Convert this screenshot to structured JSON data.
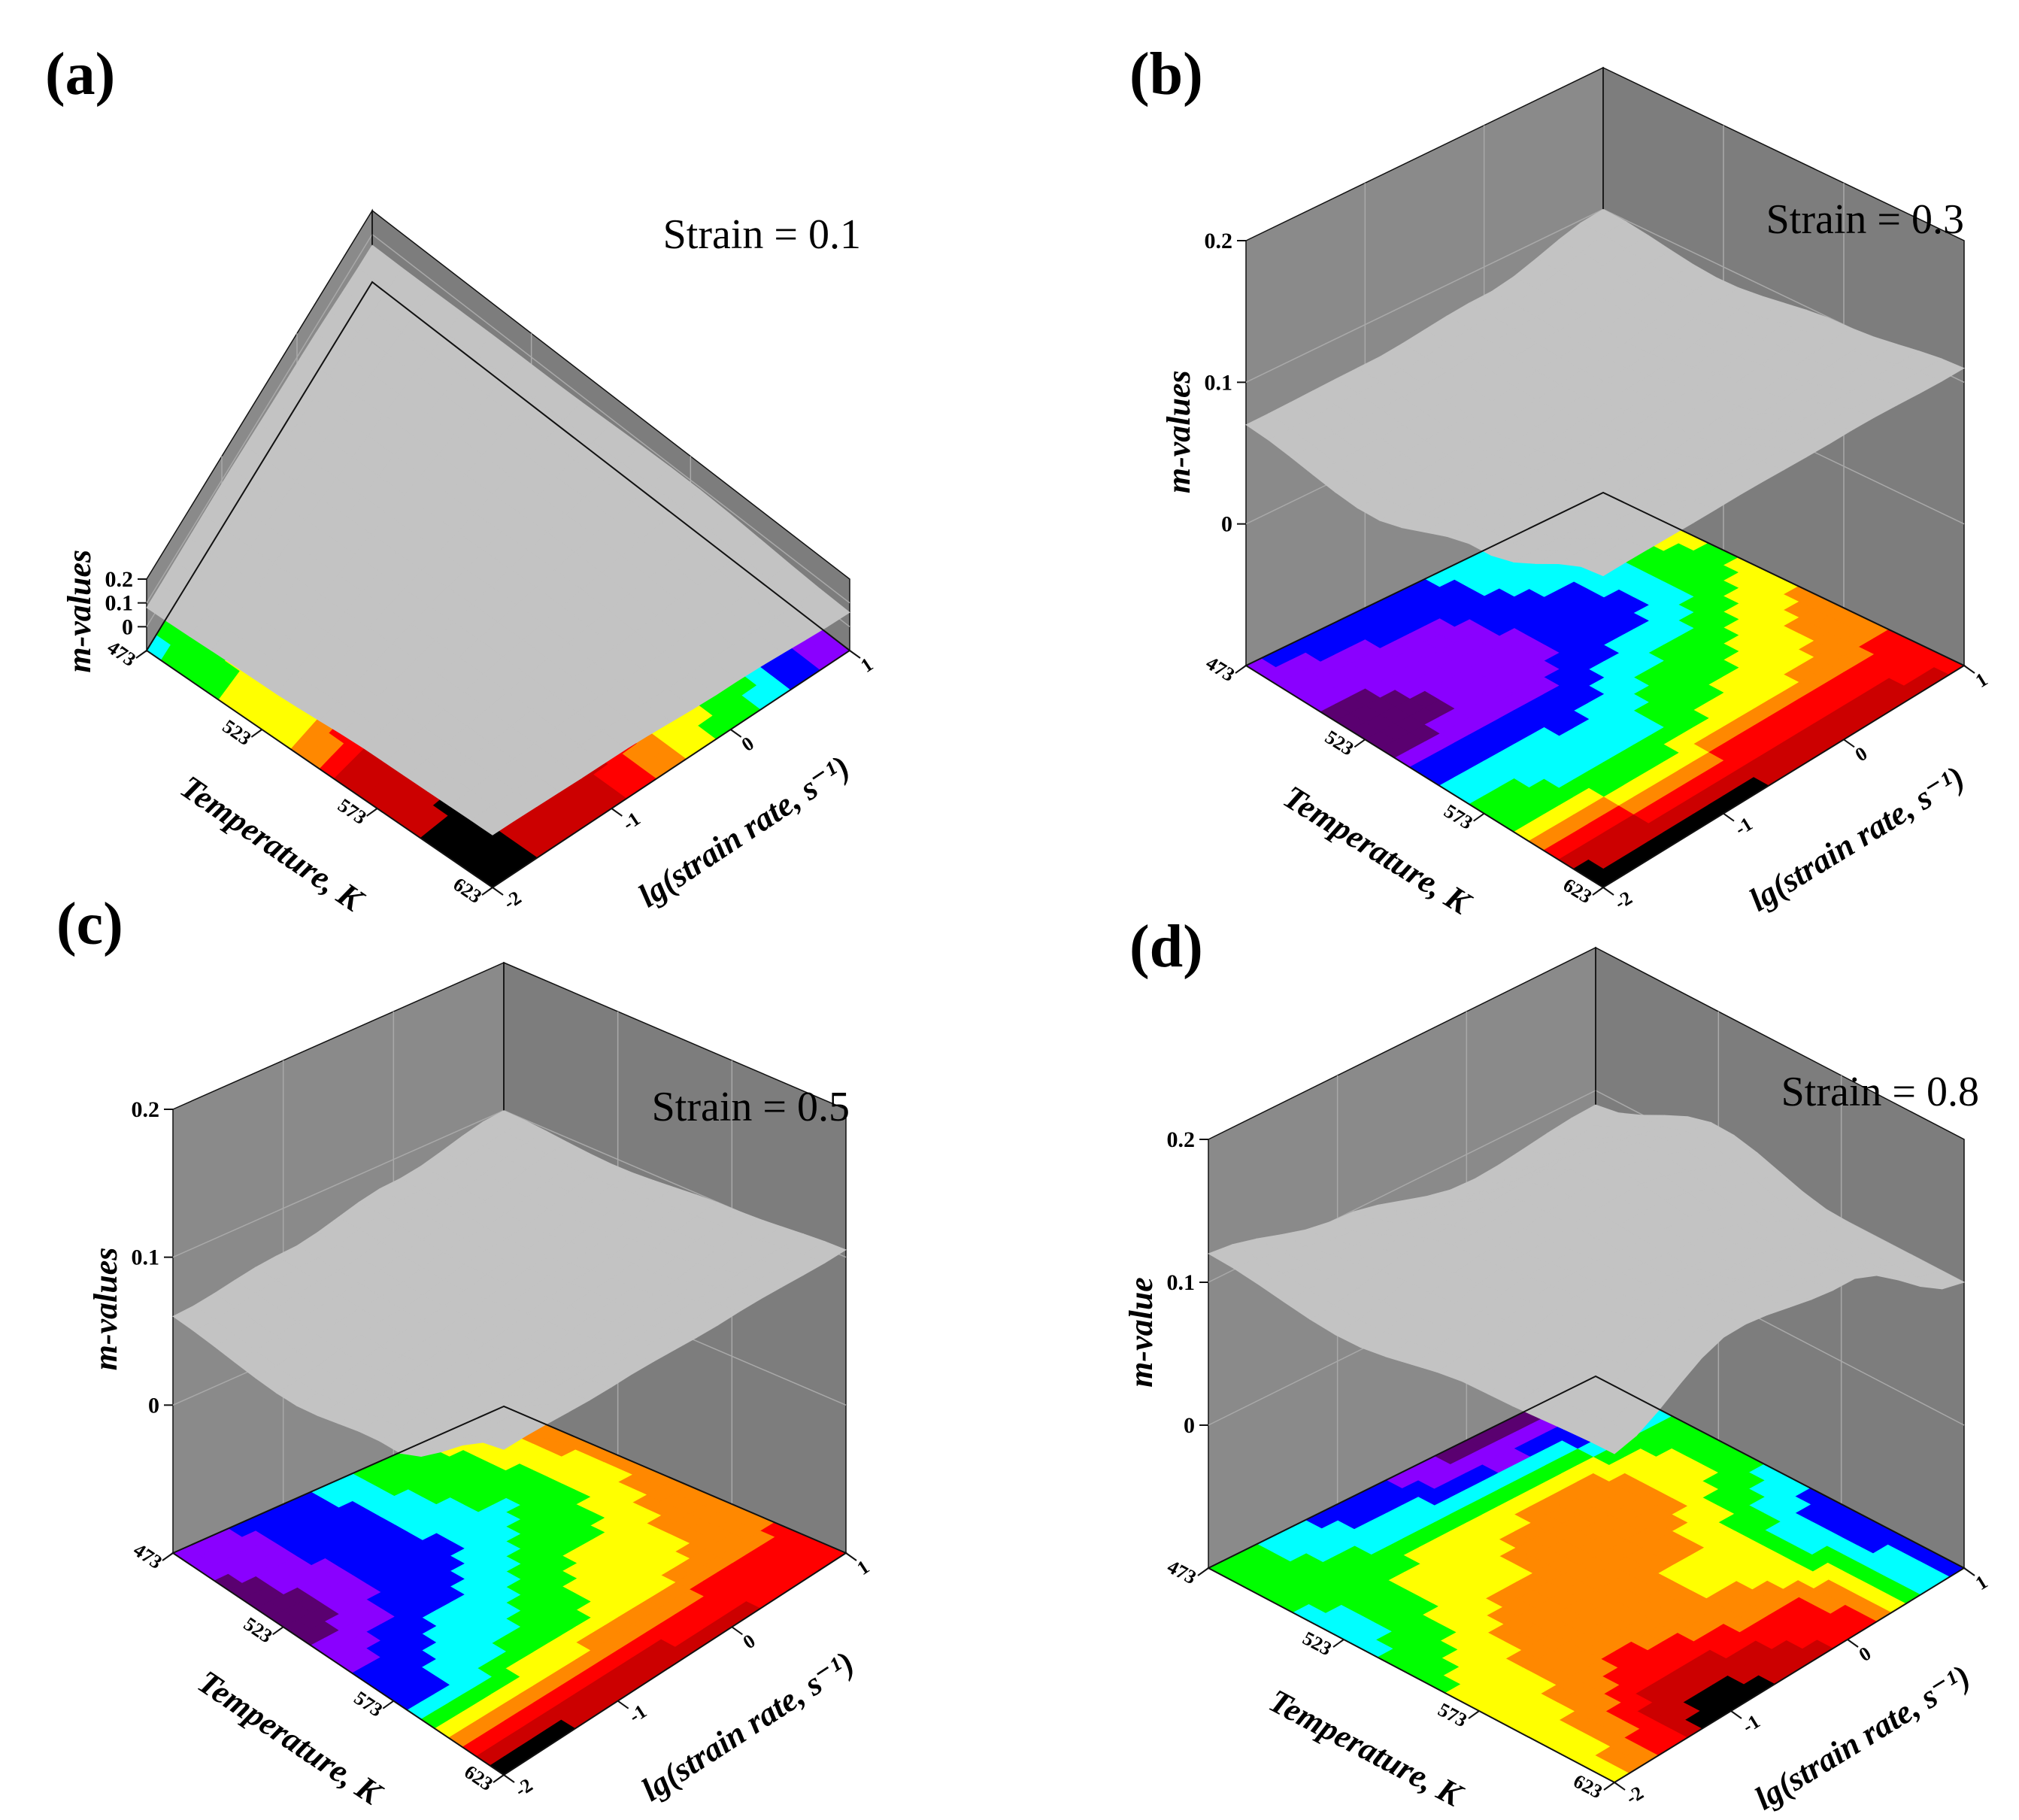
{
  "figure": {
    "colors": {
      "wall": "#8a8a8a",
      "wall_dark": "#7d7d7d",
      "grid": "#a9a9a9",
      "surface": "#c3c3c3",
      "surface_under": "#ffffff",
      "axis": "#111111"
    },
    "colormap": [
      "#000000",
      "#cc0000",
      "#ff0000",
      "#ff8800",
      "#ffff00",
      "#00ff00",
      "#00ffff",
      "#0000ff",
      "#8a00ff",
      "#5a0070"
    ],
    "y_axis_label_default": "m-values"
  },
  "chart_data": [
    {
      "type": "heatmap",
      "panel_label": "(a)",
      "annotation": "Strain = 0.1",
      "xlabel": "Temperature, K",
      "ylabel": "lg(strain rate, s⁻¹)",
      "zlabel": "m-values",
      "x": [
        473,
        523,
        573,
        623
      ],
      "y": [
        1,
        0,
        -1,
        -2
      ],
      "z_ticks": [
        "0.2",
        "0.1",
        "0"
      ],
      "x_ticks": [
        "473",
        "523",
        "573",
        "623"
      ],
      "y_ticks": [
        "1",
        "0",
        "-1",
        "-2"
      ],
      "zlim": [
        -0.1,
        0.2
      ],
      "z": [
        [
          0.055,
          0.075,
          0.085,
          0.08
        ],
        [
          0.07,
          0.09,
          0.1,
          0.09
        ],
        [
          0.09,
          0.11,
          0.12,
          0.115
        ],
        [
          0.06,
          0.085,
          0.11,
          0.12
        ]
      ]
    },
    {
      "type": "heatmap",
      "panel_label": "(b)",
      "annotation": "Strain = 0.3",
      "xlabel": "Temperature, K",
      "ylabel": "lg(strain rate, s⁻¹)",
      "zlabel": "m-values",
      "x": [
        473,
        523,
        573,
        623
      ],
      "y": [
        1,
        0,
        -1,
        -2
      ],
      "z_ticks": [
        "0.2",
        "0.1",
        "0"
      ],
      "x_ticks": [
        "473",
        "523",
        "573",
        "623"
      ],
      "y_ticks": [
        "1",
        "0",
        "-1",
        "-2"
      ],
      "zlim": [
        -0.1,
        0.2
      ],
      "z": [
        [
          0.1,
          0.08,
          0.072,
          0.07
        ],
        [
          0.09,
          0.075,
          0.065,
          0.06
        ],
        [
          0.1,
          0.09,
          0.08,
          0.085
        ],
        [
          0.11,
          0.115,
          0.118,
          0.12
        ]
      ]
    },
    {
      "type": "heatmap",
      "panel_label": "(c)",
      "annotation": "Strain = 0.5",
      "xlabel": "Temperature, K",
      "ylabel": "lg(strain rate, s⁻¹)",
      "zlabel": "m-values",
      "x": [
        473,
        523,
        573,
        623
      ],
      "y": [
        1,
        0,
        -1,
        -2
      ],
      "z_ticks": [
        "0.2",
        "0.1",
        "0"
      ],
      "x_ticks": [
        "473",
        "523",
        "573",
        "623"
      ],
      "y_ticks": [
        "1",
        "0",
        "-1",
        "-2"
      ],
      "zlim": [
        -0.1,
        0.2
      ],
      "z": [
        [
          0.1,
          0.085,
          0.07,
          0.06
        ],
        [
          0.095,
          0.08,
          0.068,
          0.055
        ],
        [
          0.1,
          0.09,
          0.08,
          0.07
        ],
        [
          0.105,
          0.11,
          0.115,
          0.12
        ]
      ]
    },
    {
      "type": "heatmap",
      "panel_label": "(d)",
      "annotation": "Strain = 0.8",
      "xlabel": "Temperature, K",
      "ylabel": "lg(strain rate, s⁻¹)",
      "zlabel": "m-value",
      "x": [
        473,
        523,
        573,
        623
      ],
      "y": [
        1,
        0,
        -1,
        -2
      ],
      "z_ticks": [
        "0.2",
        "0.1",
        "0"
      ],
      "x_ticks": [
        "473",
        "523",
        "573",
        "623"
      ],
      "y_ticks": [
        "1",
        "0",
        "-1",
        "-2"
      ],
      "zlim": [
        -0.1,
        0.2
      ],
      "z": [
        [
          0.09,
          0.08,
          0.1,
          0.12
        ],
        [
          0.12,
          0.14,
          0.13,
          0.11
        ],
        [
          0.1,
          0.13,
          0.14,
          0.125
        ],
        [
          0.1,
          0.15,
          0.165,
          0.13
        ]
      ]
    }
  ]
}
